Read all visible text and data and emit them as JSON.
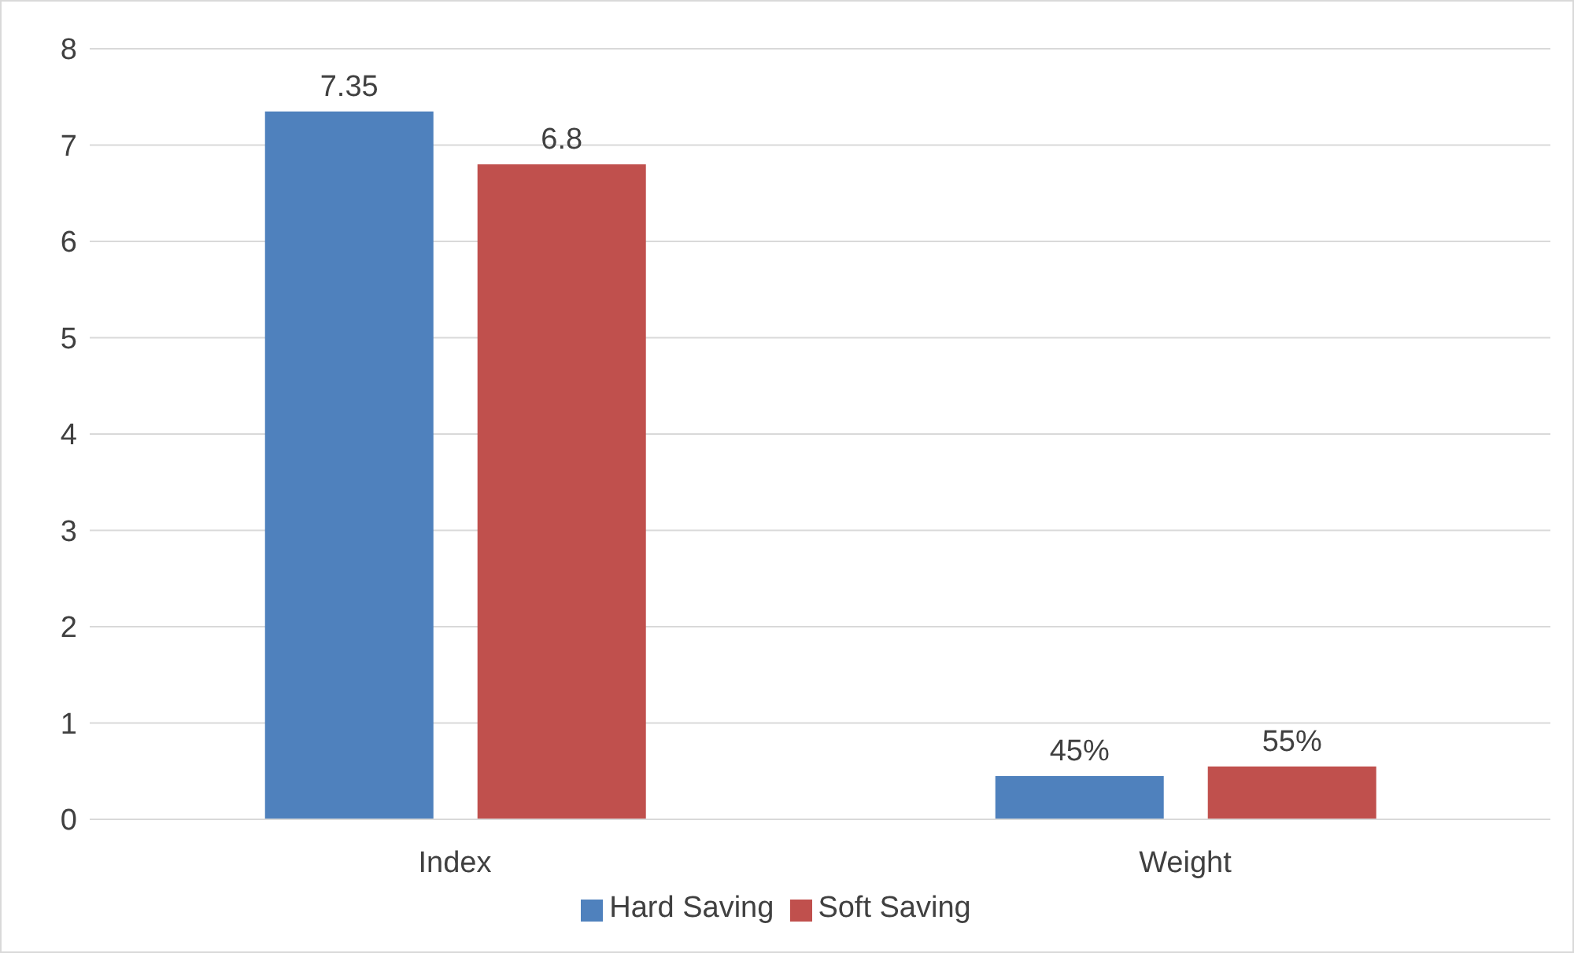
{
  "chart_data": {
    "type": "bar",
    "categories": [
      "Index",
      "Weight"
    ],
    "series": [
      {
        "name": "Hard Saving",
        "color": "#4f81bd",
        "values": [
          7.35,
          0.45
        ],
        "value_labels": [
          "7.35",
          "45%"
        ]
      },
      {
        "name": "Soft Saving",
        "color": "#c0504d",
        "values": [
          6.8,
          0.55
        ],
        "value_labels": [
          "6.8",
          "55%"
        ]
      }
    ],
    "ylim": [
      0,
      8
    ],
    "yticks": [
      0,
      1,
      2,
      3,
      4,
      5,
      6,
      7,
      8
    ],
    "grid": "y",
    "legend": "bottom"
  }
}
